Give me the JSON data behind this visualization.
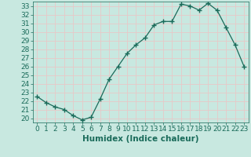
{
  "x": [
    0,
    1,
    2,
    3,
    4,
    5,
    6,
    7,
    8,
    9,
    10,
    11,
    12,
    13,
    14,
    15,
    16,
    17,
    18,
    19,
    20,
    21,
    22,
    23
  ],
  "y": [
    22.5,
    21.8,
    21.3,
    21.0,
    20.3,
    19.8,
    20.1,
    22.2,
    24.5,
    26.0,
    27.5,
    28.5,
    29.3,
    30.8,
    31.2,
    31.2,
    33.2,
    33.0,
    32.5,
    33.3,
    32.5,
    30.5,
    28.5,
    26.0
  ],
  "line_color": "#1a6b5a",
  "marker": "+",
  "marker_size": 4,
  "bg_color": "#c8e8e0",
  "grid_color": "#e8c8c8",
  "xlabel": "Humidex (Indice chaleur)",
  "xlim": [
    -0.5,
    23.5
  ],
  "ylim": [
    19.5,
    33.5
  ],
  "yticks": [
    20,
    21,
    22,
    23,
    24,
    25,
    26,
    27,
    28,
    29,
    30,
    31,
    32,
    33
  ],
  "xticks": [
    0,
    1,
    2,
    3,
    4,
    5,
    6,
    7,
    8,
    9,
    10,
    11,
    12,
    13,
    14,
    15,
    16,
    17,
    18,
    19,
    20,
    21,
    22,
    23
  ],
  "tick_label_fontsize": 6.5,
  "xlabel_fontsize": 7.5
}
